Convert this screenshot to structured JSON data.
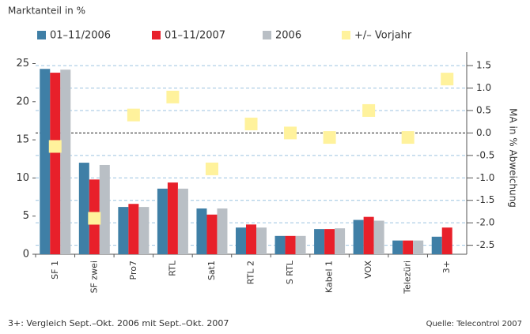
{
  "chart_data": {
    "type": "bar",
    "title": "Marktanteil in %",
    "y2label": "MA in % Abweichung",
    "footnote": "3+: Vergleich Sept.–Okt. 2006 mit Sept.–Okt. 2007",
    "source": "Quelle: Telecontrol 2007",
    "categories": [
      "SF 1",
      "SF zwei",
      "Pro7",
      "RTL",
      "Sat1",
      "RTL 2",
      "S RTL",
      "Kabel 1",
      "VOX",
      "Telezüri",
      "3+"
    ],
    "series": [
      {
        "name": "01–11/2006",
        "color": "#3f7fa6",
        "values": [
          24.3,
          12.0,
          6.2,
          8.6,
          6.0,
          3.5,
          2.4,
          3.3,
          4.5,
          1.8,
          2.3
        ]
      },
      {
        "name": "01–11/2007",
        "color": "#e8202a",
        "values": [
          23.8,
          9.8,
          6.6,
          9.4,
          5.2,
          3.9,
          2.4,
          3.3,
          4.9,
          1.8,
          3.5
        ]
      },
      {
        "name": "2006",
        "color": "#b9bfc5",
        "values": [
          24.2,
          11.7,
          6.2,
          8.6,
          6.0,
          3.5,
          2.4,
          3.4,
          4.4,
          1.8,
          null
        ]
      },
      {
        "name": "+/– Vorjahr",
        "color": "#fff29c",
        "axis": "y2",
        "marker": "square",
        "values": [
          -0.3,
          -1.9,
          0.4,
          0.8,
          -0.8,
          0.2,
          0,
          -0.1,
          0.5,
          -0.1,
          1.2
        ]
      }
    ],
    "ylim": [
      0,
      26.5
    ],
    "yticks": [
      0,
      5,
      10,
      15,
      20,
      25
    ],
    "y2lim": [
      -2.7,
      1.8
    ],
    "y2ticks": [
      -2.5,
      {
        "value": -2,
        "label": "-2.0"
      },
      -1.5,
      {
        "value": -1,
        "label": "-1.0"
      },
      -0.5,
      {
        "value": 0,
        "label": "0.0"
      },
      0.5,
      {
        "value": 1,
        "label": "1.0"
      },
      1.5
    ],
    "grid": true
  }
}
